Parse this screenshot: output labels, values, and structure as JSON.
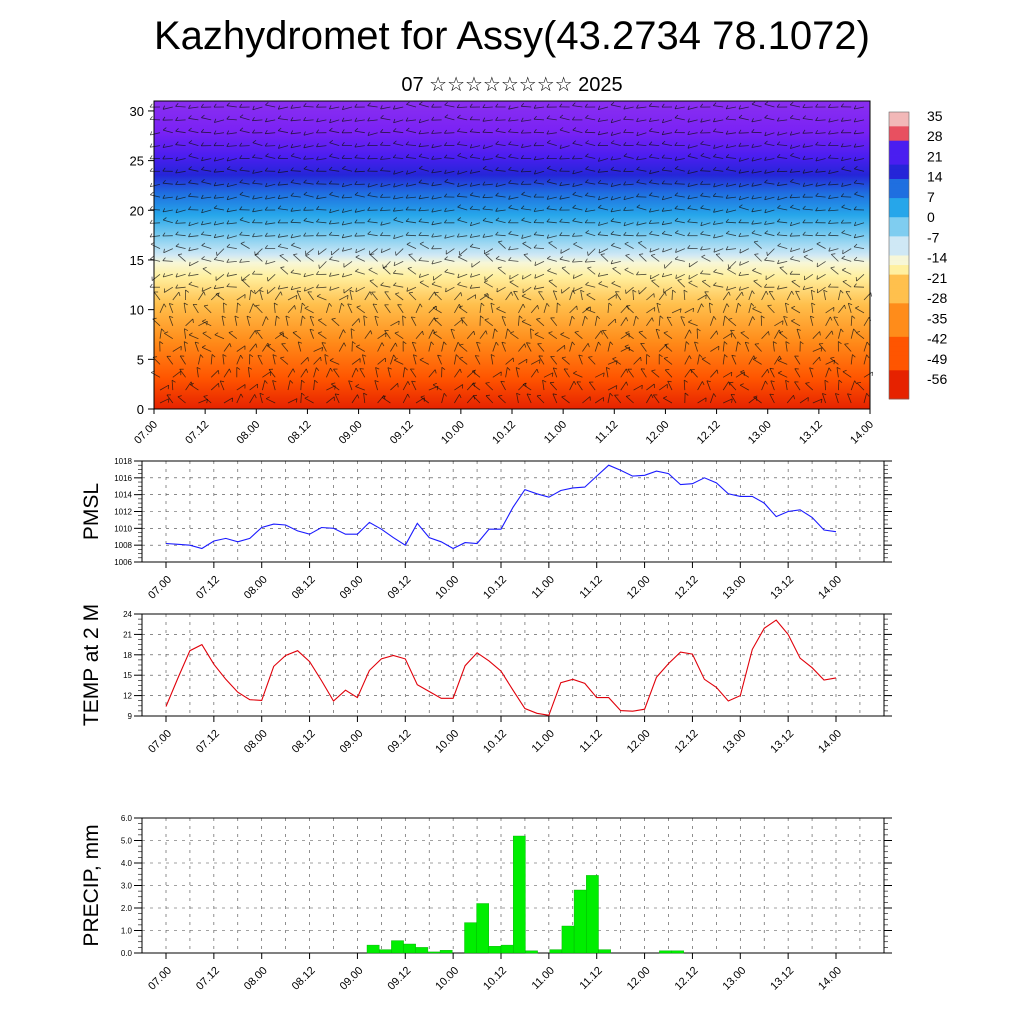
{
  "title": "Kazhydromet for Assy(43.2734 78.1072)",
  "subtitle": "07 ☆☆☆☆☆☆☆☆ 2025",
  "colors": {
    "pmsl_line": "#1a1aff",
    "temp_line": "#e0000a",
    "precip_bar": "#00ee00",
    "precip_bar_edge": "#00aa00"
  },
  "chart_data": [
    {
      "type": "heatmap",
      "name_hint": "vertical-profile",
      "x_tick_labels": [
        "07.00",
        "07.12",
        "08.00",
        "08.12",
        "09.00",
        "09.12",
        "10.00",
        "10.12",
        "11.00",
        "11.12",
        "12.00",
        "12.12",
        "13.00",
        "13.12",
        "14.00"
      ],
      "y_tick_labels": [
        "0",
        "5",
        "10",
        "15",
        "20",
        "25",
        "30"
      ],
      "ylim": [
        0,
        31
      ],
      "colorbar_labels": [
        "35",
        "28",
        "21",
        "14",
        "7",
        "0",
        "-7",
        "-14",
        "-21",
        "-28",
        "-35",
        "-42",
        "-49",
        "-56"
      ],
      "colorbar_range": [
        -63,
        42
      ],
      "legend_position": "right",
      "overlay": "wind-barbs"
    },
    {
      "type": "line",
      "ylabel": "PMSL",
      "y_tick_labels": [
        "1006",
        "1008",
        "1010",
        "1012",
        "1014",
        "1016",
        "1018"
      ],
      "ylim": [
        1006,
        1018
      ],
      "x_tick_labels": [
        "07.00",
        "07.12",
        "08.00",
        "08.12",
        "09.00",
        "09.12",
        "10.00",
        "10.12",
        "11.00",
        "11.12",
        "12.00",
        "12.12",
        "13.00",
        "13.12",
        "14.00"
      ],
      "grid": true,
      "values": [
        1008.2,
        1008.1,
        1008.0,
        1007.6,
        1008.5,
        1008.8,
        1008.4,
        1008.8,
        1010.1,
        1010.5,
        1010.4,
        1009.7,
        1009.3,
        1010.1,
        1010.0,
        1009.3,
        1009.3,
        1010.7,
        1009.9,
        1008.9,
        1008.0,
        1010.6,
        1008.9,
        1008.4,
        1007.6,
        1008.3,
        1008.2,
        1009.9,
        1009.9,
        1012.5,
        1014.6,
        1014.1,
        1013.7,
        1014.5,
        1014.8,
        1014.9,
        1016.2,
        1017.5,
        1016.9,
        1016.2,
        1016.3,
        1016.8,
        1016.5,
        1015.2,
        1015.3,
        1016.0,
        1015.4,
        1014.1,
        1013.8,
        1013.8,
        1013.0,
        1011.4,
        1012.0,
        1012.2,
        1011.3,
        1009.8,
        1009.6
      ]
    },
    {
      "type": "line",
      "ylabel": "TEMP at 2 M",
      "y_tick_labels": [
        "9",
        "12",
        "15",
        "18",
        "21",
        "24"
      ],
      "ylim": [
        9,
        24
      ],
      "x_tick_labels": [
        "07.00",
        "07.12",
        "08.00",
        "08.12",
        "09.00",
        "09.12",
        "10.00",
        "10.12",
        "11.00",
        "11.12",
        "12.00",
        "12.12",
        "13.00",
        "13.12",
        "14.00"
      ],
      "grid": true,
      "values": [
        10.4,
        14.6,
        18.6,
        19.5,
        16.6,
        14.4,
        12.5,
        11.4,
        11.3,
        16.3,
        17.9,
        18.6,
        17.0,
        14.2,
        11.2,
        12.8,
        11.7,
        15.7,
        17.4,
        17.9,
        17.4,
        13.6,
        12.6,
        11.6,
        11.6,
        16.4,
        18.3,
        17.1,
        15.6,
        12.8,
        10.1,
        9.4,
        9.1,
        13.9,
        14.4,
        13.8,
        11.7,
        11.7,
        9.8,
        9.7,
        10.0,
        14.7,
        16.7,
        18.4,
        18.1,
        14.4,
        13.2,
        11.2,
        12.0,
        18.8,
        21.9,
        23.1,
        21.0,
        17.5,
        16.1,
        14.3,
        14.6
      ]
    },
    {
      "type": "bar",
      "ylabel": "PRECIP, mm",
      "y_tick_labels": [
        "0.0",
        "1.0",
        "2.0",
        "3.0",
        "4.0",
        "5.0",
        "6.0"
      ],
      "ylim": [
        0,
        6
      ],
      "x_tick_labels": [
        "07.00",
        "07.12",
        "08.00",
        "08.12",
        "09.00",
        "09.12",
        "10.00",
        "10.12",
        "11.00",
        "11.12",
        "12.00",
        "12.12",
        "13.00",
        "13.12",
        "14.00"
      ],
      "grid": true,
      "values": [
        0,
        0,
        0,
        0,
        0,
        0,
        0,
        0,
        0,
        0,
        0,
        0,
        0,
        0,
        0,
        0,
        0,
        0.35,
        0.15,
        0.55,
        0.4,
        0.25,
        0.05,
        0.12,
        0,
        1.35,
        2.2,
        0.3,
        0.35,
        5.2,
        0.1,
        0,
        0.15,
        1.2,
        2.8,
        3.45,
        0.15,
        0,
        0,
        0,
        0,
        0.1,
        0.1,
        0,
        0,
        0,
        0,
        0,
        0,
        0,
        0,
        0,
        0,
        0,
        0,
        0
      ]
    }
  ]
}
